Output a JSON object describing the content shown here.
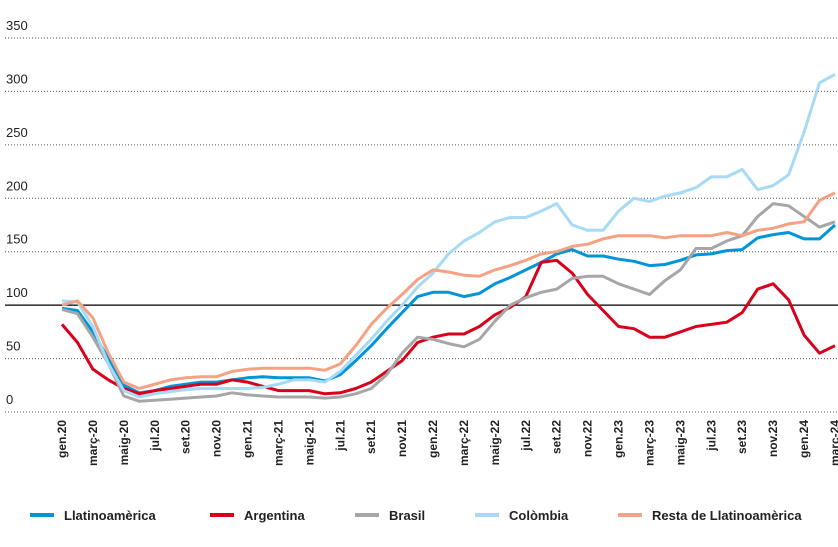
{
  "chart_data": {
    "type": "line",
    "categories": [
      "gen.20",
      null,
      "març-20",
      null,
      "maig-20",
      null,
      "jul.20",
      null,
      "set.20",
      null,
      "nov.20",
      null,
      "gen.21",
      null,
      "març-21",
      null,
      "maig-21",
      null,
      "jul.21",
      null,
      "set.21",
      null,
      "nov.21",
      null,
      "gen.22",
      null,
      "març-22",
      null,
      "maig-22",
      null,
      "jul.22",
      null,
      "set.22",
      null,
      "nov.22",
      null,
      "gen.23",
      null,
      "març-23",
      null,
      "maig-23",
      null,
      "jul.23",
      null,
      "set.23",
      null,
      "nov.23",
      null,
      "gen.24",
      null,
      "març-24"
    ],
    "series": [
      {
        "name": "Llatinoamèrica",
        "color": "#0095d8",
        "values": [
          97,
          95,
          75,
          50,
          25,
          18,
          20,
          24,
          26,
          28,
          28,
          30,
          32,
          33,
          32,
          32,
          32,
          29,
          35,
          48,
          62,
          78,
          93,
          108,
          112,
          112,
          108,
          111,
          120,
          126,
          133,
          140,
          148,
          152,
          146,
          146,
          143,
          141,
          137,
          138,
          142,
          147,
          148,
          151,
          152,
          163,
          166,
          168,
          162,
          162,
          175
        ]
      },
      {
        "name": "Argentina",
        "color": "#d9001b",
        "values": [
          82,
          65,
          40,
          30,
          22,
          17,
          20,
          22,
          24,
          26,
          26,
          30,
          28,
          24,
          20,
          20,
          20,
          17,
          18,
          22,
          28,
          38,
          48,
          65,
          70,
          73,
          73,
          80,
          91,
          98,
          108,
          140,
          142,
          130,
          110,
          95,
          80,
          78,
          70,
          70,
          75,
          80,
          82,
          84,
          93,
          115,
          120,
          105,
          72,
          55,
          62
        ]
      },
      {
        "name": "Brasil",
        "color": "#a6a6a6",
        "values": [
          96,
          92,
          70,
          45,
          15,
          10,
          11,
          12,
          13,
          14,
          15,
          18,
          16,
          15,
          14,
          14,
          14,
          13,
          14,
          17,
          22,
          35,
          55,
          70,
          68,
          64,
          61,
          68,
          85,
          100,
          107,
          112,
          115,
          125,
          127,
          127,
          120,
          115,
          110,
          123,
          133,
          153,
          153,
          160,
          165,
          183,
          195,
          193,
          183,
          173,
          178
        ]
      },
      {
        "name": "Colòmbia",
        "color": "#a6daf5",
        "values": [
          104,
          103,
          80,
          45,
          20,
          14,
          17,
          19,
          21,
          22,
          22,
          22,
          22,
          23,
          26,
          30,
          30,
          28,
          38,
          53,
          68,
          85,
          100,
          117,
          130,
          148,
          160,
          168,
          178,
          182,
          182,
          188,
          195,
          175,
          170,
          170,
          188,
          200,
          197,
          202,
          205,
          210,
          220,
          220,
          227,
          208,
          212,
          222,
          262,
          308,
          316
        ]
      },
      {
        "name": "Resta de Llatinoamèrica",
        "color": "#f4a184",
        "values": [
          100,
          104,
          88,
          55,
          28,
          22,
          26,
          30,
          32,
          33,
          33,
          38,
          40,
          41,
          41,
          41,
          41,
          39,
          45,
          62,
          82,
          97,
          110,
          124,
          133,
          131,
          128,
          127,
          133,
          137,
          142,
          148,
          150,
          155,
          157,
          162,
          165,
          165,
          165,
          163,
          165,
          165,
          165,
          168,
          165,
          170,
          172,
          176,
          178,
          198,
          205
        ]
      }
    ],
    "ylim": [
      0,
      350
    ],
    "yticks": [
      0,
      50,
      100,
      150,
      200,
      250,
      300,
      350
    ],
    "grid": true,
    "reference_line": 100,
    "legend": "bottom"
  }
}
